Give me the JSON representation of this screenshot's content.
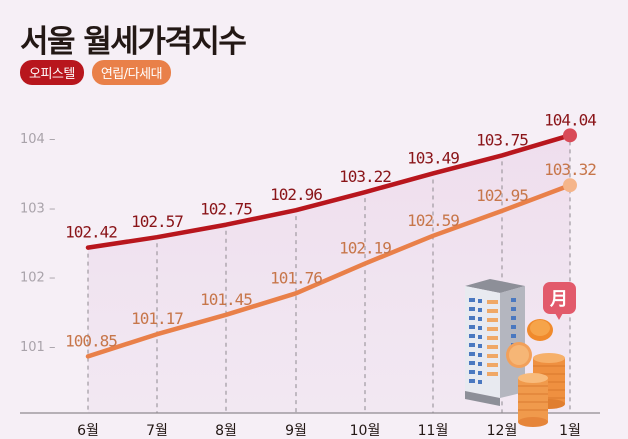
{
  "title": "서울 월세가격지수",
  "legend": [
    {
      "label": "오피스텔",
      "color": "#b8161d"
    },
    {
      "label": "연립/다세대",
      "color": "#e98049"
    }
  ],
  "chart_data": {
    "type": "line",
    "title": "서울 월세가격지수",
    "xlabel": "",
    "ylabel": "",
    "categories": [
      "6월",
      "7월",
      "8월",
      "9월",
      "10월",
      "11월",
      "12월",
      "1월"
    ],
    "series": [
      {
        "name": "오피스텔",
        "color": "#b8161d",
        "values": [
          102.42,
          102.57,
          102.75,
          102.96,
          103.22,
          103.49,
          103.75,
          104.04
        ]
      },
      {
        "name": "연립/다세대",
        "color": "#e98049",
        "values": [
          100.85,
          101.17,
          101.45,
          101.76,
          102.19,
          102.59,
          102.95,
          103.32
        ]
      }
    ],
    "yticks": [
      101,
      102,
      103,
      104
    ],
    "ylim": [
      100.05,
      104.5
    ],
    "grid": "vertical dashed lines at each category",
    "legend_position": "top-left",
    "data_labels": true
  },
  "axis": {
    "yticks": [
      "104 –",
      "103 –",
      "102 –",
      "101 –"
    ]
  }
}
